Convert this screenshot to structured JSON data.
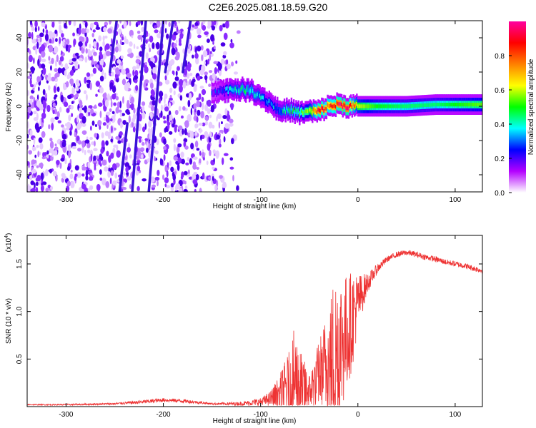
{
  "title": "C2E6.2025.081.18.59.G20",
  "chart_data": [
    {
      "type": "heatmap",
      "xlabel": "Height of straight line (km)",
      "ylabel": "Frequency (Hz)",
      "xlim": [
        -340,
        128
      ],
      "ylim": [
        -50,
        50
      ],
      "xticks": [
        -300,
        -200,
        -100,
        0,
        100
      ],
      "yticks": [
        -40,
        -20,
        0,
        20,
        40
      ],
      "colorbar": {
        "label": "Normalized spectral amplitude",
        "range": [
          0,
          1
        ],
        "ticks": [
          0.0,
          0.2,
          0.4,
          0.6,
          0.8
        ],
        "colors": [
          "#ffffff",
          "#b400ff",
          "#0000ff",
          "#00ffff",
          "#00ff00",
          "#ffff00",
          "#ff8000",
          "#ff0000",
          "#ff00a0"
        ]
      },
      "noise_region": [
        -340,
        -150
      ],
      "signal_track": [
        {
          "x": -150,
          "y": 9,
          "a": 0.2
        },
        {
          "x": -140,
          "y": 9,
          "a": 0.25
        },
        {
          "x": -130,
          "y": 10,
          "a": 0.35
        },
        {
          "x": -120,
          "y": 10,
          "a": 0.4
        },
        {
          "x": -110,
          "y": 9,
          "a": 0.4
        },
        {
          "x": -100,
          "y": 6,
          "a": 0.35
        },
        {
          "x": -90,
          "y": 2,
          "a": 0.3
        },
        {
          "x": -80,
          "y": -3,
          "a": 0.35
        },
        {
          "x": -70,
          "y": -2,
          "a": 0.4
        },
        {
          "x": -60,
          "y": -4,
          "a": 0.45
        },
        {
          "x": -50,
          "y": -3,
          "a": 0.55
        },
        {
          "x": -40,
          "y": -3,
          "a": 0.9
        },
        {
          "x": -30,
          "y": 0,
          "a": 0.8
        },
        {
          "x": -20,
          "y": 1,
          "a": 0.9
        },
        {
          "x": -10,
          "y": 0,
          "a": 0.92
        },
        {
          "x": 0,
          "y": 0,
          "a": 0.6
        },
        {
          "x": 20,
          "y": 0,
          "a": 0.5
        },
        {
          "x": 50,
          "y": 0,
          "a": 0.45
        },
        {
          "x": 80,
          "y": 1,
          "a": 0.45
        },
        {
          "x": 100,
          "y": 1,
          "a": 0.5
        },
        {
          "x": 128,
          "y": 1,
          "a": 0.55
        }
      ],
      "streaks": [
        {
          "x1": -232,
          "y1": -50,
          "x2": -218,
          "y2": 50
        },
        {
          "x1": -215,
          "y1": -50,
          "x2": -200,
          "y2": 50
        },
        {
          "x1": -198,
          "y1": 20,
          "x2": -190,
          "y2": 50
        },
        {
          "x1": -180,
          "y1": 20,
          "x2": -172,
          "y2": 50
        },
        {
          "x1": -245,
          "y1": -50,
          "x2": -237,
          "y2": -10
        },
        {
          "x1": -255,
          "y1": 20,
          "x2": -248,
          "y2": 50
        }
      ]
    },
    {
      "type": "line",
      "xlabel": "Height of straight line (km)",
      "ylabel": "SNR (10 * v/v)",
      "scale_label": "(x10",
      "scale_exp": "4",
      "xlim": [
        -340,
        128
      ],
      "ylim": [
        0,
        1.8
      ],
      "xticks": [
        -300,
        -200,
        -100,
        0,
        100
      ],
      "yticks": [
        0.5,
        1.0,
        1.5
      ],
      "ytick_labels": [
        "0.5",
        "1.0",
        "1.5"
      ],
      "color": "#ee3333",
      "envelope": {
        "x": [
          -340,
          -300,
          -250,
          -220,
          -200,
          -180,
          -150,
          -120,
          -100,
          -90,
          -80,
          -70,
          -65,
          -60,
          -50,
          -40,
          -35,
          -30,
          -25,
          -20,
          -15,
          -10,
          -5,
          0,
          10,
          20,
          30,
          40,
          50,
          60,
          70,
          80,
          90,
          100,
          110,
          120,
          128
        ],
        "base": [
          0.02,
          0.02,
          0.03,
          0.05,
          0.07,
          0.06,
          0.03,
          0.03,
          0.05,
          0.08,
          0.15,
          0.25,
          0.3,
          0.2,
          0.15,
          0.35,
          0.4,
          0.45,
          0.5,
          0.6,
          0.7,
          0.8,
          0.95,
          1.1,
          1.3,
          1.45,
          1.55,
          1.6,
          1.62,
          1.6,
          1.57,
          1.55,
          1.52,
          1.5,
          1.48,
          1.45,
          1.43
        ],
        "spread": [
          0.005,
          0.008,
          0.01,
          0.02,
          0.02,
          0.02,
          0.01,
          0.02,
          0.04,
          0.08,
          0.2,
          0.35,
          0.55,
          0.45,
          0.2,
          0.35,
          0.5,
          0.6,
          0.9,
          0.9,
          0.7,
          0.6,
          0.5,
          0.3,
          0.1,
          0.05,
          0.03,
          0.03,
          0.03,
          0.03,
          0.03,
          0.03,
          0.03,
          0.03,
          0.03,
          0.03,
          0.03
        ]
      }
    }
  ]
}
